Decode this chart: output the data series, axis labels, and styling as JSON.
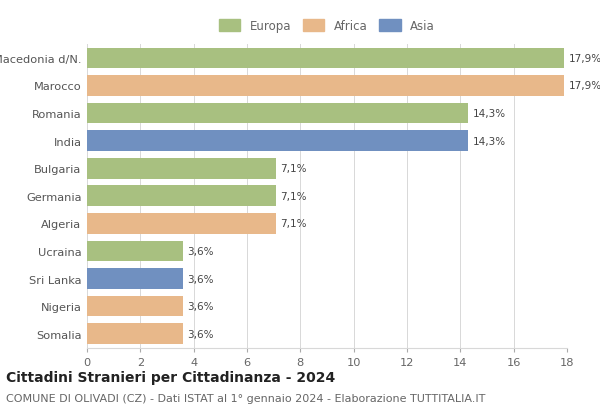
{
  "labels": [
    "Macedonia d/N.",
    "Marocco",
    "Romania",
    "India",
    "Bulgaria",
    "Germania",
    "Algeria",
    "Ucraina",
    "Sri Lanka",
    "Nigeria",
    "Somalia"
  ],
  "values": [
    17.9,
    17.9,
    14.3,
    14.3,
    7.1,
    7.1,
    7.1,
    3.6,
    3.6,
    3.6,
    3.6
  ],
  "pct_labels": [
    "17,9%",
    "17,9%",
    "14,3%",
    "14,3%",
    "7,1%",
    "7,1%",
    "7,1%",
    "3,6%",
    "3,6%",
    "3,6%",
    "3,6%"
  ],
  "continents": [
    "Europa",
    "Africa",
    "Europa",
    "Asia",
    "Europa",
    "Europa",
    "Africa",
    "Europa",
    "Asia",
    "Africa",
    "Africa"
  ],
  "colors": {
    "Europa": "#a8c080",
    "Africa": "#e8b88a",
    "Asia": "#7090c0"
  },
  "legend_labels": [
    "Europa",
    "Africa",
    "Asia"
  ],
  "xlim": [
    0,
    18
  ],
  "xticks": [
    0,
    2,
    4,
    6,
    8,
    10,
    12,
    14,
    16,
    18
  ],
  "title": "Cittadini Stranieri per Cittadinanza - 2024",
  "subtitle": "COMUNE DI OLIVADI (CZ) - Dati ISTAT al 1° gennaio 2024 - Elaborazione TUTTITALIA.IT",
  "title_fontsize": 10,
  "subtitle_fontsize": 8,
  "bar_height": 0.75,
  "background_color": "#ffffff",
  "grid_color": "#d8d8d8"
}
